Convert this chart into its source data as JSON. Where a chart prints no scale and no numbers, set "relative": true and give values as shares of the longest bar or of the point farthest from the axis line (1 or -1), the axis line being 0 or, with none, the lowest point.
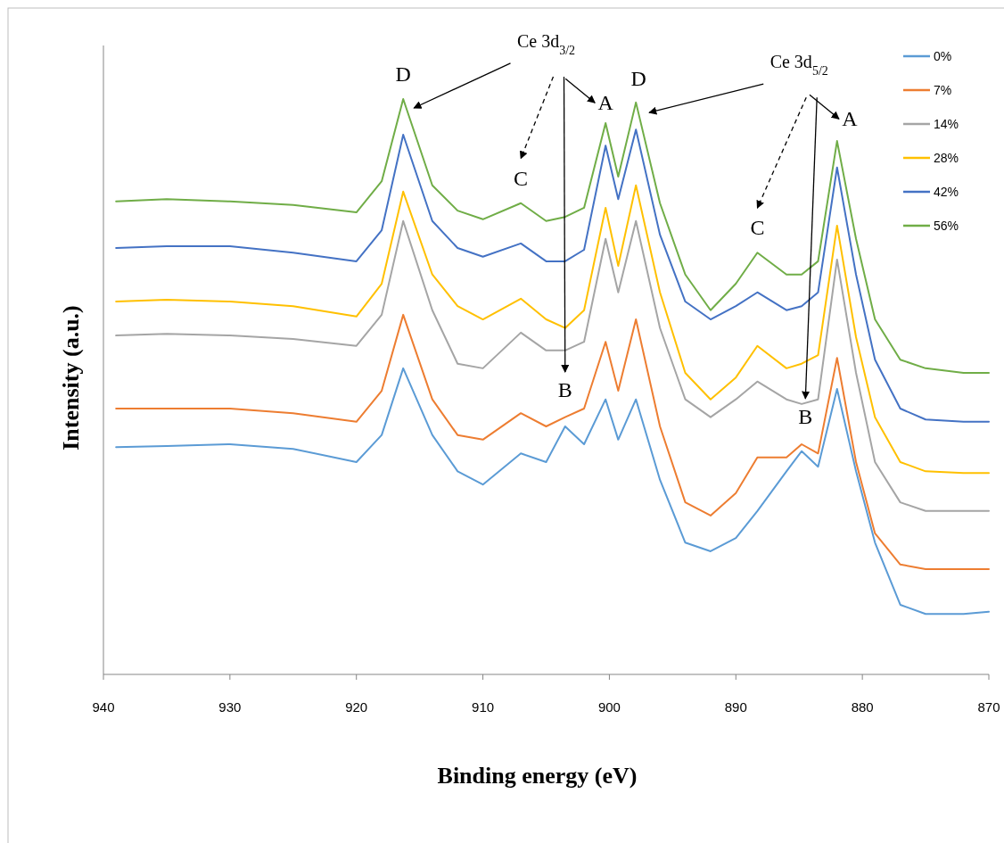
{
  "chart_data": {
    "type": "line",
    "relative": true,
    "xlabel": "Binding energy (eV)",
    "ylabel": "Intensity (a.u.)",
    "xlim": [
      940,
      870
    ],
    "xticks": [
      940,
      930,
      920,
      910,
      900,
      890,
      880,
      870
    ],
    "legend": "top right",
    "x": [
      939,
      935,
      930,
      925,
      920,
      918,
      916.3,
      914,
      912,
      910,
      907,
      905,
      903.5,
      902,
      900.3,
      899.3,
      897.9,
      896,
      894,
      892,
      890,
      888.3,
      886,
      884.8,
      883.5,
      882,
      880.5,
      879,
      877,
      875,
      872,
      870
    ],
    "series": [
      {
        "name": "0%",
        "color": "#5b9bd5",
        "values": [
          0.395,
          0.397,
          0.4,
          0.392,
          0.369,
          0.416,
          0.532,
          0.416,
          0.353,
          0.33,
          0.384,
          0.369,
          0.431,
          0.4,
          0.478,
          0.408,
          0.478,
          0.338,
          0.229,
          0.214,
          0.237,
          0.284,
          0.353,
          0.388,
          0.361,
          0.496,
          0.353,
          0.229,
          0.121,
          0.105,
          0.105,
          0.109
        ]
      },
      {
        "name": "7%",
        "color": "#ed7d31",
        "values": [
          0.462,
          0.462,
          0.462,
          0.454,
          0.439,
          0.493,
          0.625,
          0.478,
          0.416,
          0.408,
          0.454,
          0.431,
          0.447,
          0.462,
          0.578,
          0.493,
          0.617,
          0.431,
          0.299,
          0.276,
          0.315,
          0.377,
          0.377,
          0.4,
          0.384,
          0.55,
          0.369,
          0.245,
          0.191,
          0.183,
          0.183,
          0.183
        ]
      },
      {
        "name": "14%",
        "color": "#a5a5a5",
        "values": [
          0.589,
          0.592,
          0.589,
          0.583,
          0.571,
          0.625,
          0.788,
          0.633,
          0.54,
          0.532,
          0.594,
          0.563,
          0.563,
          0.578,
          0.757,
          0.664,
          0.788,
          0.602,
          0.478,
          0.447,
          0.478,
          0.509,
          0.478,
          0.47,
          0.478,
          0.721,
          0.524,
          0.369,
          0.299,
          0.284,
          0.284,
          0.284
        ]
      },
      {
        "name": "28%",
        "color": "#ffc000",
        "values": [
          0.648,
          0.651,
          0.648,
          0.64,
          0.622,
          0.679,
          0.839,
          0.695,
          0.64,
          0.617,
          0.653,
          0.617,
          0.602,
          0.633,
          0.811,
          0.71,
          0.85,
          0.664,
          0.524,
          0.478,
          0.516,
          0.571,
          0.532,
          0.54,
          0.555,
          0.78,
          0.586,
          0.447,
          0.369,
          0.353,
          0.35,
          0.35
        ]
      },
      {
        "name": "42%",
        "color": "#4472c4",
        "values": [
          0.741,
          0.744,
          0.744,
          0.733,
          0.718,
          0.772,
          0.938,
          0.788,
          0.741,
          0.726,
          0.749,
          0.718,
          0.718,
          0.738,
          0.919,
          0.826,
          0.947,
          0.764,
          0.648,
          0.617,
          0.64,
          0.664,
          0.633,
          0.64,
          0.664,
          0.881,
          0.695,
          0.547,
          0.462,
          0.443,
          0.439,
          0.439
        ]
      },
      {
        "name": "56%",
        "color": "#70ad47",
        "values": [
          0.822,
          0.826,
          0.822,
          0.816,
          0.803,
          0.857,
          1.0,
          0.85,
          0.806,
          0.791,
          0.819,
          0.788,
          0.795,
          0.811,
          0.958,
          0.865,
          0.994,
          0.819,
          0.695,
          0.633,
          0.679,
          0.733,
          0.695,
          0.695,
          0.718,
          0.927,
          0.757,
          0.617,
          0.547,
          0.532,
          0.524,
          0.524
        ]
      }
    ],
    "annotations": [
      "D",
      "C",
      "B",
      "A",
      "D",
      "C",
      "B",
      "A",
      "Ce 3d$_{3/2}$",
      "Ce 3d$_{5/2}$"
    ]
  }
}
